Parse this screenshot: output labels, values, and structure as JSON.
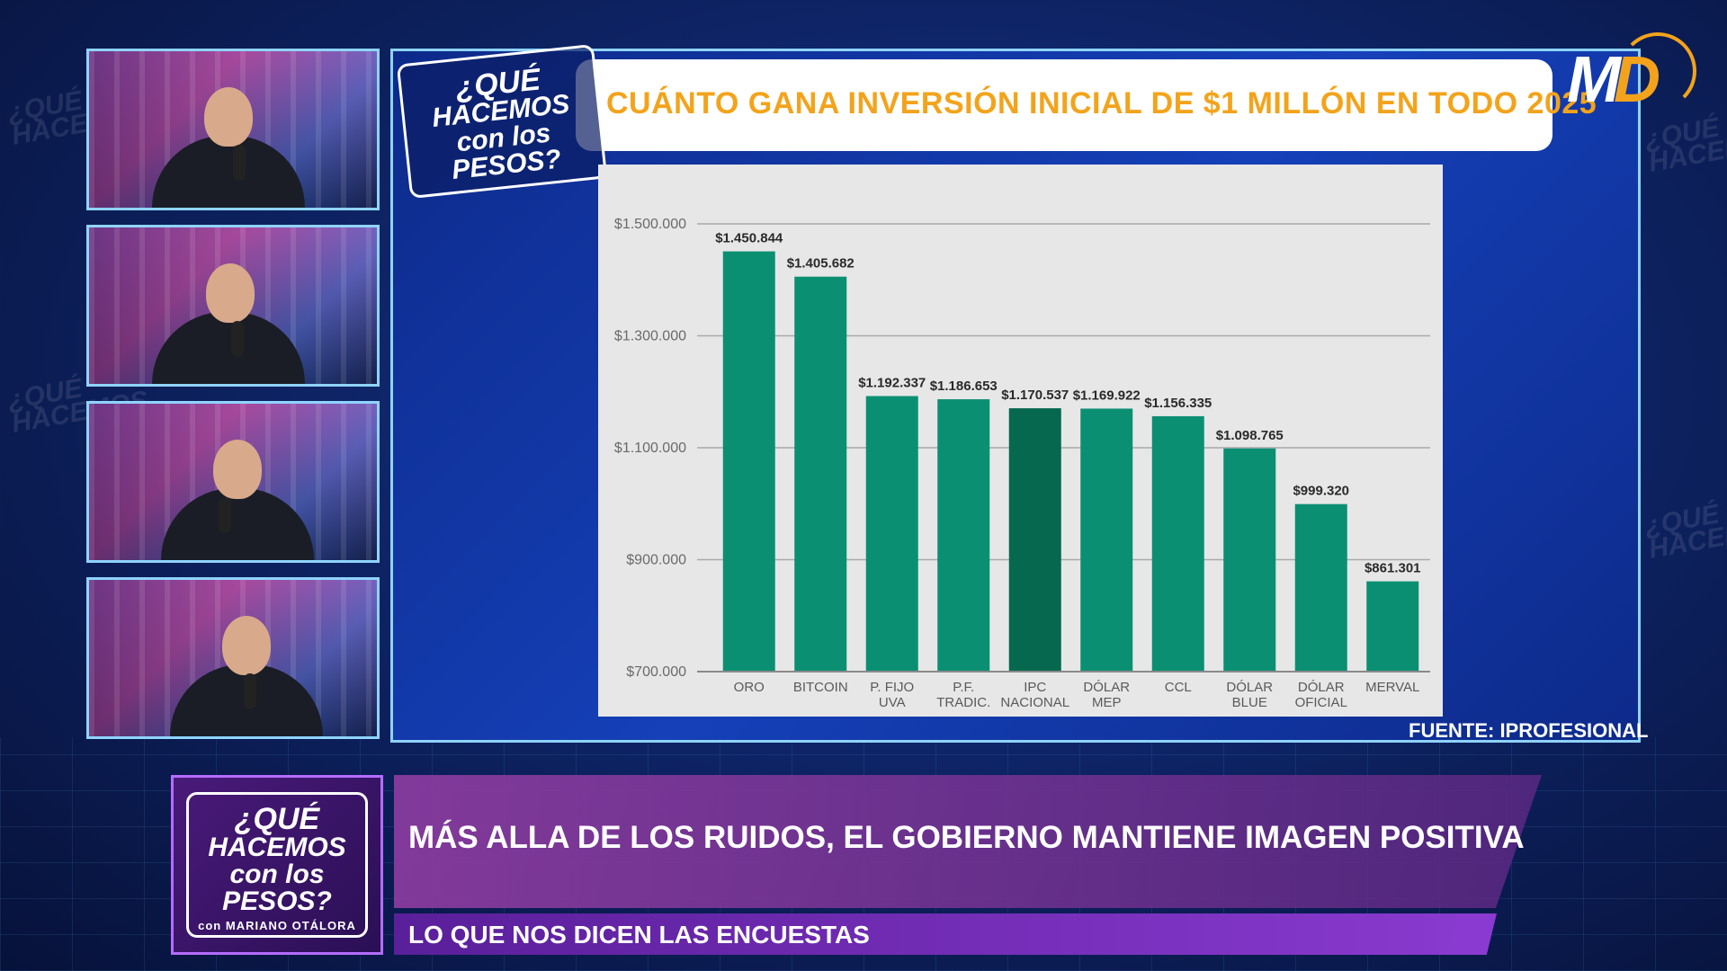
{
  "header": {
    "title": "CUÁNTO GANA INVERSIÓN INICIAL DE $1 MILLÓN EN TODO 2025",
    "source": "FUENTE: IPROFESIONAL",
    "brand": {
      "m": "M",
      "d": "D"
    }
  },
  "show_logo": {
    "line1": "¿QUÉ",
    "line2": "HACEMOS",
    "line3": "con los PESOS?",
    "host": "con MARIANO OTÁLORA"
  },
  "lower_third": {
    "headline": "MÁS ALLA DE LOS RUIDOS, EL GOBIERNO MANTIENE IMAGEN POSITIVA",
    "subheadline": "LO QUE NOS DICEN LAS ENCUESTAS"
  },
  "colors": {
    "bar": "#0b8f73",
    "bar_highlight": "#06684f",
    "title": "#f3a31b",
    "grid": "#a9a9a9"
  },
  "chart_data": {
    "type": "bar",
    "categories": [
      [
        "ORO"
      ],
      [
        "BITCOIN"
      ],
      [
        "P. FIJO",
        "UVA"
      ],
      [
        "P.F.",
        "TRADIC."
      ],
      [
        "IPC",
        "NACIONAL"
      ],
      [
        "DÓLAR",
        "MEP"
      ],
      [
        "CCL"
      ],
      [
        "DÓLAR",
        "BLUE"
      ],
      [
        "DÓLAR",
        "OFICIAL"
      ],
      [
        "MERVAL"
      ]
    ],
    "values": [
      1450844,
      1405682,
      1192337,
      1186653,
      1170537,
      1169922,
      1156335,
      1098765,
      999320,
      861301
    ],
    "data_labels": [
      "$1.450.844",
      "$1.405.682",
      "$1.192.337",
      "$1.186.653",
      "$1.170.537",
      "$1.169.922",
      "$1.156.335",
      "$1.098.765",
      "$999.320",
      "$861.301"
    ],
    "highlight_index": 4,
    "yticks": [
      700000,
      900000,
      1100000,
      1300000,
      1500000
    ],
    "ytick_labels": [
      "$700.000",
      "$900.000",
      "$1.100.000",
      "$1.300.000",
      "$1.500.000"
    ],
    "ylim": [
      700000,
      1500000
    ],
    "grid": true
  }
}
